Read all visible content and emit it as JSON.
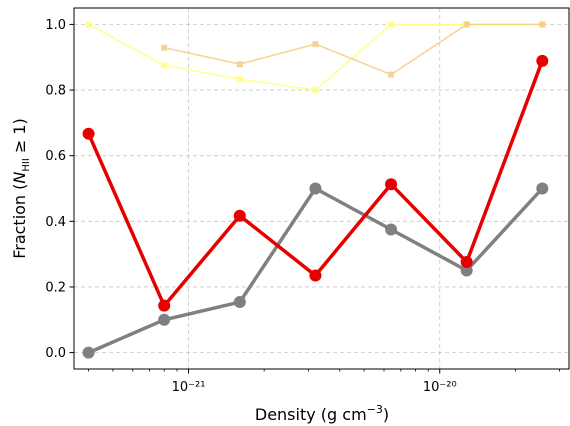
{
  "chart_data": {
    "type": "line",
    "xscale": "log",
    "xlim": [
      3.5e-22,
      3.3e-20
    ],
    "ylim": [
      -0.05,
      1.05
    ],
    "grid": true,
    "xlabel": "Density (g cm⁻³)",
    "ylabel": "Fraction (N_HII ≥ 1)",
    "x_ticks": [
      {
        "value": 1e-21,
        "label": "10⁻²¹"
      },
      {
        "value": 1e-20,
        "label": "10⁻²⁰"
      }
    ],
    "y_ticks": [
      0.0,
      0.2,
      0.4,
      0.6,
      0.8,
      1.0
    ],
    "y_tick_labels": [
      "0.0",
      "0.2",
      "0.4",
      "0.6",
      "0.8",
      "1.0"
    ],
    "series": [
      {
        "color": "#ffff80",
        "marker": "square",
        "width": 1.5,
        "marker_size": 5,
        "opacity": 0.9,
        "points": [
          [
            4e-22,
            1.0
          ],
          [
            8e-22,
            0.875
          ],
          [
            1.6e-21,
            0.833
          ],
          [
            3.2e-21,
            0.8
          ],
          [
            6.4e-21,
            1.0
          ],
          [
            1.28e-20,
            1.0
          ],
          [
            2.56e-20,
            1.0
          ]
        ]
      },
      {
        "color": "#f5c77a",
        "marker": "square",
        "width": 1.5,
        "marker_size": 5,
        "opacity": 0.8,
        "points": [
          [
            8e-22,
            0.929
          ],
          [
            1.6e-21,
            0.879
          ],
          [
            3.2e-21,
            0.94
          ],
          [
            6.4e-21,
            0.847
          ],
          [
            1.28e-20,
            1.0
          ],
          [
            2.56e-20,
            1.0
          ]
        ]
      },
      {
        "color": "#808080",
        "marker": "circle",
        "width": 3.5,
        "marker_size": 6,
        "opacity": 1,
        "points": [
          [
            4e-22,
            0.0
          ],
          [
            8e-22,
            0.1
          ],
          [
            1.6e-21,
            0.154
          ],
          [
            3.2e-21,
            0.5
          ],
          [
            6.4e-21,
            0.375
          ],
          [
            1.28e-20,
            0.25
          ],
          [
            2.56e-20,
            0.5
          ]
        ]
      },
      {
        "color": "#e60000",
        "marker": "circle",
        "width": 3.5,
        "marker_size": 6,
        "opacity": 1,
        "points": [
          [
            4e-22,
            0.667
          ],
          [
            8e-22,
            0.143
          ],
          [
            1.6e-21,
            0.417
          ],
          [
            3.2e-21,
            0.235
          ],
          [
            6.4e-21,
            0.513
          ],
          [
            1.28e-20,
            0.276
          ],
          [
            2.56e-20,
            0.889
          ]
        ]
      }
    ]
  }
}
